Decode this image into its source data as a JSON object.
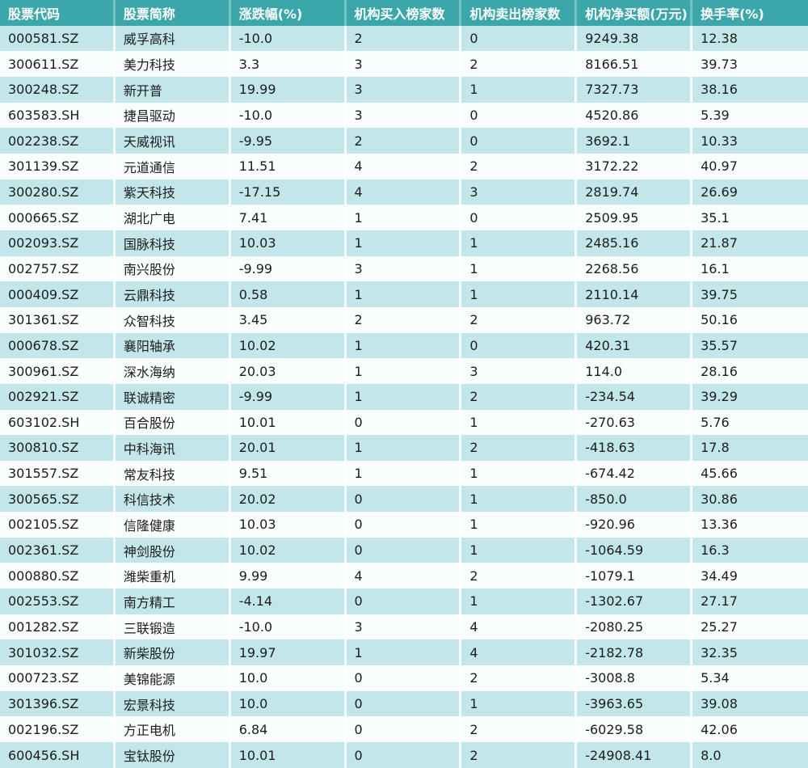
{
  "colors": {
    "header_bg": "#3ca7aa",
    "header_text": "#ffffff",
    "row_alt_bg": "#c2e6ea",
    "row_bg": "#fafdfe",
    "body_text": "#1c1c1c"
  },
  "table": {
    "columns": [
      {
        "key": "stock-code",
        "label": "股票代码"
      },
      {
        "key": "stock-name",
        "label": "股票简称"
      },
      {
        "key": "change-pct",
        "label": "涨跌幅(%)"
      },
      {
        "key": "inst-buy-count",
        "label": "机构买入榜家数"
      },
      {
        "key": "inst-sell-count",
        "label": "机构卖出榜家数"
      },
      {
        "key": "inst-net-buy",
        "label": "机构净买额(万元)"
      },
      {
        "key": "turnover-rate",
        "label": "换手率(%)"
      }
    ],
    "rows": [
      [
        "000581.SZ",
        "威孚高科",
        "-10.0",
        "2",
        "0",
        "9249.38",
        "12.38"
      ],
      [
        "300611.SZ",
        "美力科技",
        "3.3",
        "3",
        "2",
        "8166.51",
        "39.73"
      ],
      [
        "300248.SZ",
        "新开普",
        "19.99",
        "3",
        "1",
        "7327.73",
        "38.16"
      ],
      [
        "603583.SH",
        "捷昌驱动",
        "-10.0",
        "3",
        "0",
        "4520.86",
        "5.39"
      ],
      [
        "002238.SZ",
        "天威视讯",
        "-9.95",
        "2",
        "0",
        "3692.1",
        "10.33"
      ],
      [
        "301139.SZ",
        "元道通信",
        "11.51",
        "4",
        "2",
        "3172.22",
        "40.97"
      ],
      [
        "300280.SZ",
        "紫天科技",
        "-17.15",
        "4",
        "3",
        "2819.74",
        "26.69"
      ],
      [
        "000665.SZ",
        "湖北广电",
        "7.41",
        "1",
        "0",
        "2509.95",
        "35.1"
      ],
      [
        "002093.SZ",
        "国脉科技",
        "10.03",
        "1",
        "1",
        "2485.16",
        "21.87"
      ],
      [
        "002757.SZ",
        "南兴股份",
        "-9.99",
        "3",
        "1",
        "2268.56",
        "16.1"
      ],
      [
        "000409.SZ",
        "云鼎科技",
        "0.58",
        "1",
        "1",
        "2110.14",
        "39.75"
      ],
      [
        "301361.SZ",
        "众智科技",
        "3.45",
        "2",
        "2",
        "963.72",
        "50.16"
      ],
      [
        "000678.SZ",
        "襄阳轴承",
        "10.02",
        "1",
        "0",
        "420.31",
        "35.57"
      ],
      [
        "300961.SZ",
        "深水海纳",
        "20.03",
        "1",
        "3",
        "114.0",
        "28.16"
      ],
      [
        "002921.SZ",
        "联诚精密",
        "-9.99",
        "1",
        "2",
        "-234.54",
        "39.29"
      ],
      [
        "603102.SH",
        "百合股份",
        "10.01",
        "0",
        "1",
        "-270.63",
        "5.76"
      ],
      [
        "300810.SZ",
        "中科海讯",
        "20.01",
        "1",
        "2",
        "-418.63",
        "17.8"
      ],
      [
        "301557.SZ",
        "常友科技",
        "9.51",
        "1",
        "1",
        "-674.42",
        "45.66"
      ],
      [
        "300565.SZ",
        "科信技术",
        "20.02",
        "0",
        "1",
        "-850.0",
        "30.86"
      ],
      [
        "002105.SZ",
        "信隆健康",
        "10.03",
        "0",
        "1",
        "-920.96",
        "13.36"
      ],
      [
        "002361.SZ",
        "神剑股份",
        "10.02",
        "0",
        "1",
        "-1064.59",
        "16.3"
      ],
      [
        "000880.SZ",
        "潍柴重机",
        "9.99",
        "4",
        "2",
        "-1079.1",
        "34.49"
      ],
      [
        "002553.SZ",
        "南方精工",
        "-4.14",
        "0",
        "1",
        "-1302.67",
        "27.17"
      ],
      [
        "001282.SZ",
        "三联锻造",
        "-10.0",
        "3",
        "4",
        "-2080.25",
        "25.27"
      ],
      [
        "301032.SZ",
        "新柴股份",
        "19.97",
        "1",
        "4",
        "-2182.78",
        "32.35"
      ],
      [
        "000723.SZ",
        "美锦能源",
        "10.0",
        "0",
        "2",
        "-3008.8",
        "5.34"
      ],
      [
        "301396.SZ",
        "宏景科技",
        "10.0",
        "0",
        "1",
        "-3963.65",
        "39.08"
      ],
      [
        "002196.SZ",
        "方正电机",
        "6.84",
        "0",
        "2",
        "-6029.58",
        "42.06"
      ],
      [
        "600456.SH",
        "宝钛股份",
        "10.01",
        "0",
        "2",
        "-24908.41",
        "8.0"
      ]
    ]
  }
}
